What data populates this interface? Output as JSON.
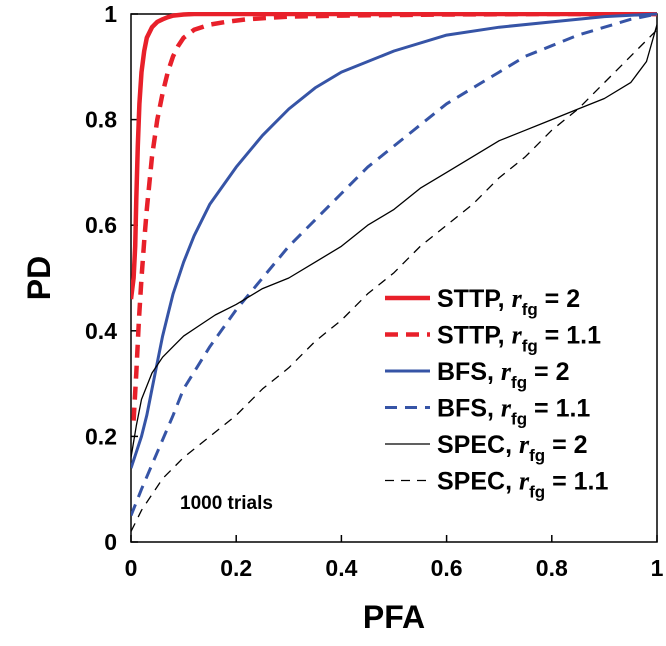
{
  "chart_data": {
    "type": "line",
    "title": "",
    "xlabel": "PFA",
    "ylabel": "PD",
    "xlim": [
      0,
      1
    ],
    "ylim": [
      0,
      1
    ],
    "xticks": [
      "0",
      "0.2",
      "0.4",
      "0.6",
      "0.8",
      "1"
    ],
    "yticks": [
      "0",
      "0.2",
      "0.4",
      "0.6",
      "0.8",
      "1"
    ],
    "annotation": "1000 trials",
    "legend_position": "bottom-right",
    "series": [
      {
        "name": "STTP, r_fg = 2",
        "legend": {
          "method": "STTP,",
          "symbol": "r",
          "sub": "fg",
          "value": "= 2"
        },
        "color": "#e8202a",
        "style": "solid",
        "weight": "thick",
        "x": [
          0,
          0.005,
          0.008,
          0.01,
          0.013,
          0.016,
          0.02,
          0.025,
          0.03,
          0.04,
          0.05,
          0.06,
          0.07,
          0.08,
          0.1,
          0.12,
          0.15,
          0.2,
          0.3,
          0.5,
          0.7,
          1.0
        ],
        "y": [
          0.46,
          0.5,
          0.56,
          0.65,
          0.75,
          0.83,
          0.89,
          0.93,
          0.955,
          0.975,
          0.985,
          0.99,
          0.994,
          0.997,
          0.999,
          1.0,
          1.0,
          1.0,
          1.0,
          1.0,
          1.0,
          1.0
        ]
      },
      {
        "name": "STTP, r_fg = 1.1",
        "legend": {
          "method": "STTP,",
          "symbol": "r",
          "sub": "fg",
          "value": "= 1.1"
        },
        "color": "#e8202a",
        "style": "dashed",
        "weight": "thick",
        "x": [
          0.005,
          0.01,
          0.015,
          0.02,
          0.025,
          0.03,
          0.035,
          0.04,
          0.05,
          0.06,
          0.07,
          0.08,
          0.09,
          0.1,
          0.12,
          0.15,
          0.18,
          0.22,
          0.3,
          0.4,
          0.6,
          0.8,
          1.0
        ],
        "y": [
          0.23,
          0.32,
          0.42,
          0.5,
          0.57,
          0.63,
          0.68,
          0.73,
          0.8,
          0.85,
          0.89,
          0.92,
          0.94,
          0.955,
          0.97,
          0.98,
          0.985,
          0.99,
          0.995,
          0.997,
          0.999,
          1.0,
          1.0
        ]
      },
      {
        "name": "BFS, r_fg = 2",
        "legend": {
          "method": "BFS,",
          "symbol": "r",
          "sub": "fg",
          "value": "= 2"
        },
        "color": "#3654a6",
        "style": "solid",
        "weight": "medium",
        "x": [
          0,
          0.01,
          0.02,
          0.03,
          0.04,
          0.05,
          0.06,
          0.07,
          0.08,
          0.1,
          0.12,
          0.15,
          0.2,
          0.25,
          0.3,
          0.35,
          0.4,
          0.5,
          0.6,
          0.7,
          0.8,
          0.9,
          1.0
        ],
        "y": [
          0.14,
          0.17,
          0.2,
          0.24,
          0.29,
          0.34,
          0.39,
          0.43,
          0.47,
          0.53,
          0.58,
          0.64,
          0.71,
          0.77,
          0.82,
          0.86,
          0.89,
          0.93,
          0.96,
          0.975,
          0.985,
          0.995,
          1.0
        ]
      },
      {
        "name": "BFS, r_fg = 1.1",
        "legend": {
          "method": "BFS,",
          "symbol": "r",
          "sub": "fg",
          "value": "= 1.1"
        },
        "color": "#3654a6",
        "style": "dashed",
        "weight": "medium",
        "x": [
          0,
          0.02,
          0.05,
          0.08,
          0.1,
          0.15,
          0.2,
          0.25,
          0.3,
          0.35,
          0.4,
          0.45,
          0.5,
          0.55,
          0.6,
          0.65,
          0.7,
          0.75,
          0.8,
          0.85,
          0.9,
          0.95,
          1.0
        ],
        "y": [
          0.05,
          0.1,
          0.17,
          0.24,
          0.29,
          0.37,
          0.44,
          0.5,
          0.56,
          0.61,
          0.66,
          0.71,
          0.75,
          0.79,
          0.83,
          0.86,
          0.89,
          0.92,
          0.94,
          0.96,
          0.975,
          0.99,
          1.0
        ]
      },
      {
        "name": "SPEC, r_fg = 2",
        "legend": {
          "method": "SPEC,",
          "symbol": "r",
          "sub": "fg",
          "value": "= 2"
        },
        "color": "#000000",
        "style": "solid",
        "weight": "thin",
        "x": [
          0,
          0.01,
          0.02,
          0.04,
          0.06,
          0.08,
          0.1,
          0.13,
          0.16,
          0.2,
          0.25,
          0.3,
          0.35,
          0.4,
          0.45,
          0.5,
          0.55,
          0.6,
          0.65,
          0.7,
          0.75,
          0.8,
          0.85,
          0.9,
          0.95,
          0.98,
          1.0
        ],
        "y": [
          0.16,
          0.22,
          0.27,
          0.32,
          0.35,
          0.37,
          0.39,
          0.41,
          0.43,
          0.45,
          0.48,
          0.5,
          0.53,
          0.56,
          0.6,
          0.63,
          0.67,
          0.7,
          0.73,
          0.76,
          0.78,
          0.8,
          0.82,
          0.84,
          0.87,
          0.91,
          0.98
        ]
      },
      {
        "name": "SPEC, r_fg = 1.1",
        "legend": {
          "method": "SPEC,",
          "symbol": "r",
          "sub": "fg",
          "value": "= 1.1"
        },
        "color": "#000000",
        "style": "dashed",
        "weight": "thin",
        "x": [
          0,
          0.01,
          0.02,
          0.04,
          0.06,
          0.08,
          0.1,
          0.15,
          0.2,
          0.25,
          0.3,
          0.35,
          0.4,
          0.45,
          0.5,
          0.55,
          0.6,
          0.65,
          0.7,
          0.75,
          0.8,
          0.85,
          0.9,
          0.95,
          1.0
        ],
        "y": [
          0.02,
          0.04,
          0.06,
          0.09,
          0.12,
          0.14,
          0.16,
          0.2,
          0.24,
          0.29,
          0.33,
          0.38,
          0.42,
          0.47,
          0.51,
          0.56,
          0.6,
          0.64,
          0.69,
          0.73,
          0.78,
          0.82,
          0.87,
          0.92,
          0.97
        ]
      }
    ]
  }
}
